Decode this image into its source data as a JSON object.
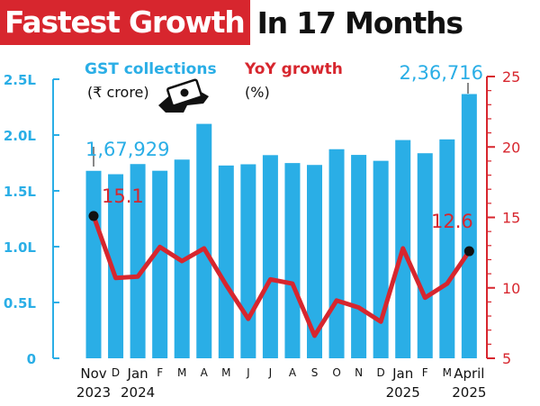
{
  "headline": {
    "part1": "Fastest Growth",
    "part2": "In 17 Months"
  },
  "colors": {
    "bars": "#2aaee6",
    "line": "#d7262e",
    "left_axis": "#2aaee6",
    "right_axis": "#d7262e",
    "title_bg": "#d7262e",
    "marker": "#111111"
  },
  "chart_data": {
    "type": "bar",
    "legend": {
      "gst_label": "GST collections",
      "gst_unit": "(₹ crore)",
      "yoy_label": "YoY growth",
      "yoy_unit": "(%)",
      "icon": "money-in-hand-icon"
    },
    "categories": [
      "Nov 2023",
      "Dec 2023",
      "Jan 2024",
      "Feb 2024",
      "Mar 2024",
      "Apr 2024",
      "May 2024",
      "Jun 2024",
      "Jul 2024",
      "Aug 2024",
      "Sep 2024",
      "Oct 2024",
      "Nov 2024",
      "Dec 2024",
      "Jan 2025",
      "Feb 2025",
      "Mar 2025",
      "Apr 2025"
    ],
    "x_tick_labels": [
      "Nov",
      "D",
      "Jan",
      "F",
      "M",
      "A",
      "M",
      "J",
      "J",
      "A",
      "S",
      "O",
      "N",
      "D",
      "Jan",
      "F",
      "M",
      "April"
    ],
    "x_year_labels": [
      {
        "index": 0,
        "label": "2023"
      },
      {
        "index": 2,
        "label": "2024"
      },
      {
        "index": 14,
        "label": "2025"
      },
      {
        "index": 17,
        "label": "2025"
      }
    ],
    "series": [
      {
        "name": "GST collections",
        "type": "bar",
        "axis": "left",
        "values": [
          167929,
          164900,
          174000,
          168000,
          178000,
          210000,
          172700,
          173800,
          182000,
          174900,
          173200,
          187300,
          182200,
          176900,
          195500,
          183700,
          196100,
          236716
        ]
      },
      {
        "name": "YoY growth",
        "type": "line",
        "axis": "right",
        "values": [
          15.1,
          10.7,
          10.8,
          12.9,
          11.9,
          12.8,
          10.2,
          7.8,
          10.6,
          10.3,
          6.6,
          9.1,
          8.6,
          7.6,
          12.8,
          9.3,
          10.3,
          12.6
        ]
      }
    ],
    "left_axis": {
      "ylim": [
        0,
        250000
      ],
      "ticks": [
        0,
        50000,
        100000,
        150000,
        200000,
        250000
      ],
      "tick_labels": [
        "0",
        "0.5L",
        "1.0L",
        "1.5L",
        "2.0L",
        "2.5L"
      ]
    },
    "right_axis": {
      "ylim": [
        5,
        25
      ],
      "ticks": [
        5,
        10,
        15,
        20,
        25
      ],
      "tick_labels": [
        "5",
        "10",
        "15",
        "20",
        "25"
      ]
    },
    "annotations": [
      {
        "text": "1,67,929",
        "index": 0,
        "series": "GST collections"
      },
      {
        "text": "15.1",
        "index": 0,
        "series": "YoY growth"
      },
      {
        "text": "2,36,716",
        "index": 17,
        "series": "GST collections"
      },
      {
        "text": "12.6",
        "index": 17,
        "series": "YoY growth"
      }
    ],
    "markers": [
      0,
      17
    ],
    "grid": false
  }
}
